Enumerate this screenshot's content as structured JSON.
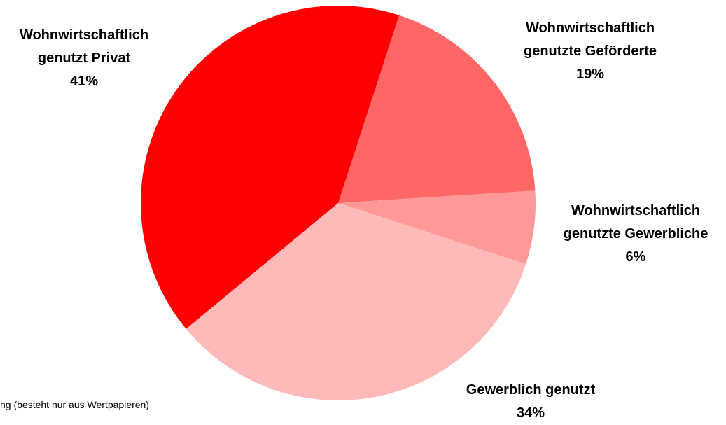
{
  "chart_data": {
    "type": "pie",
    "categories": [
      "Wohnwirtschaftlich genutzte Geförderte",
      "Wohnwirtschaftlich genutzte Gewerbliche",
      "Gewerblich genutzt",
      "Wohnwirtschaftlich genutzt Privat"
    ],
    "values": [
      19,
      6,
      34,
      41
    ],
    "value_labels": [
      "19%",
      "6%",
      "34%",
      "41%"
    ],
    "colors": [
      "#ff6666",
      "#ff9999",
      "#ffb9b9",
      "#ff0000"
    ],
    "note": "ng (besteht nur aus Wertpapieren)"
  }
}
